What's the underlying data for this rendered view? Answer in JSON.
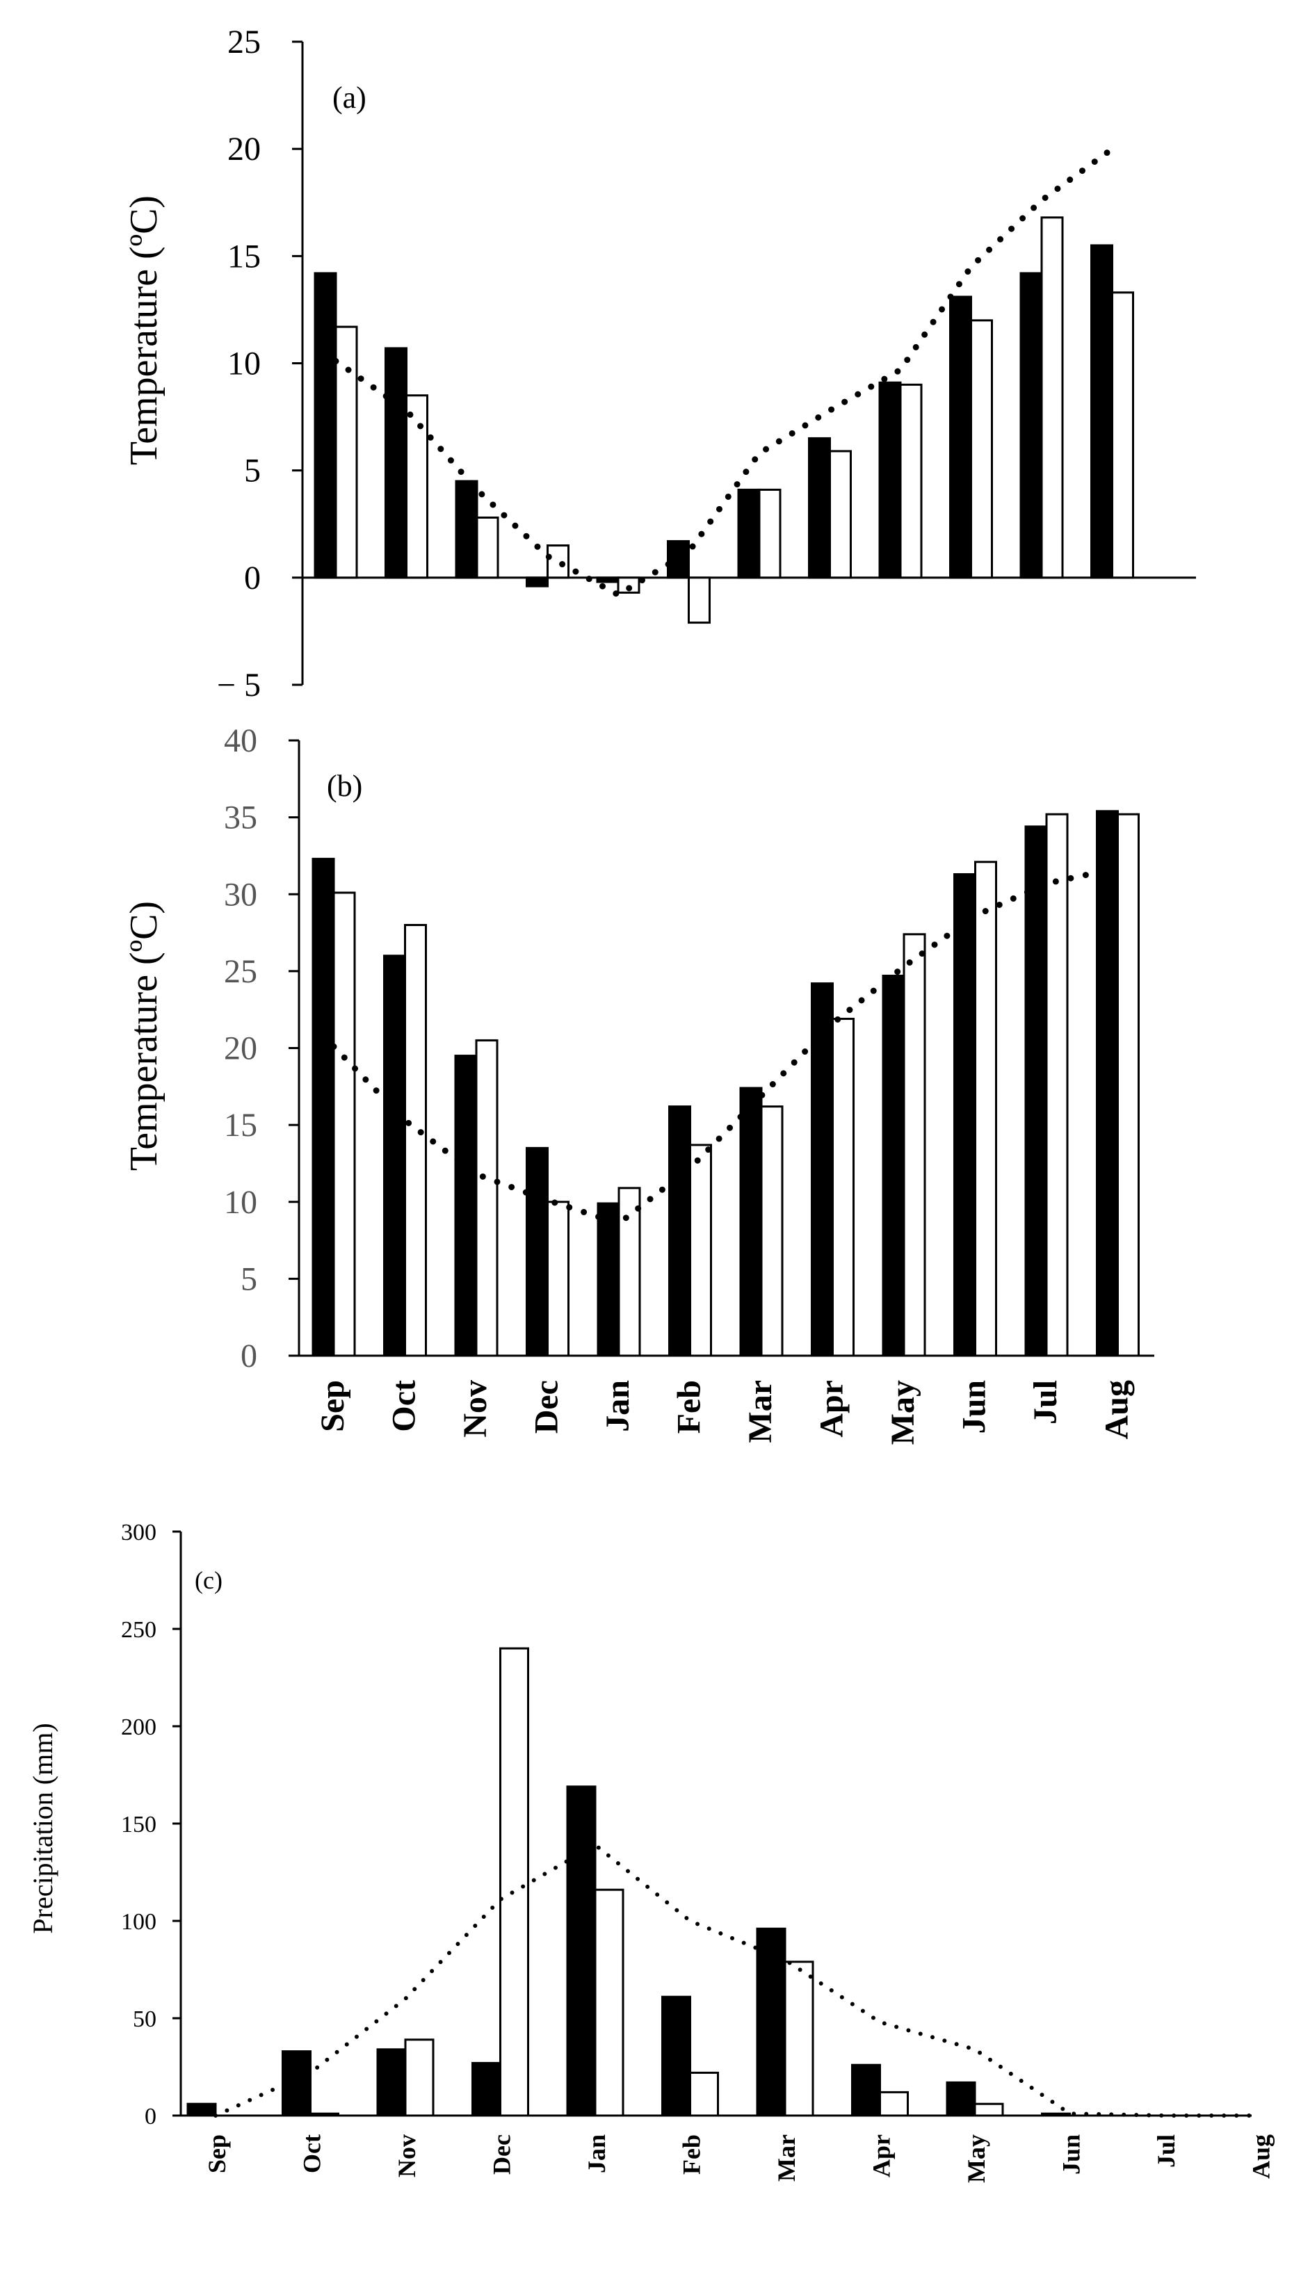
{
  "chart_data": [
    {
      "type": "bar",
      "panel_label": "(a)",
      "categories": [
        "Sep",
        "Oct",
        "Nov",
        "Dec",
        "Jan",
        "Feb",
        "Mar",
        "Apr",
        "May",
        "Jun",
        "Jul",
        "Aug"
      ],
      "series": [
        {
          "name": "filled",
          "color": "#000000",
          "values": [
            14.2,
            10.7,
            4.5,
            -0.4,
            -0.2,
            1.7,
            4.1,
            6.5,
            9.1,
            13.1,
            14.2,
            15.5
          ]
        },
        {
          "name": "open",
          "color": "#ffffff",
          "values": [
            11.7,
            8.5,
            2.8,
            1.5,
            -0.7,
            -2.1,
            4.1,
            5.9,
            9.0,
            12.0,
            16.8,
            13.3
          ]
        },
        {
          "name": "mean",
          "style": "dotted-line",
          "values": [
            10.1,
            7.8,
            4.1,
            1.0,
            -0.8,
            1.2,
            5.8,
            7.8,
            9.7,
            14.5,
            17.6,
            20.0
          ]
        }
      ],
      "ylabel": "Temperature (ºC)",
      "ylim": [
        -5,
        25
      ],
      "yticks": [
        "25",
        "20",
        "15",
        "10",
        "5",
        "0",
        "− 5"
      ]
    },
    {
      "type": "bar",
      "panel_label": "(b)",
      "categories": [
        "Sep",
        "Oct",
        "Nov",
        "Dec",
        "Jan",
        "Feb",
        "Mar",
        "Apr",
        "May",
        "Jun",
        "Jul",
        "Aug"
      ],
      "series": [
        {
          "name": "filled",
          "color": "#000000",
          "values": [
            32.3,
            26.0,
            19.5,
            13.5,
            9.9,
            16.2,
            17.4,
            24.2,
            24.7,
            31.3,
            34.4,
            35.4
          ]
        },
        {
          "name": "open",
          "color": "#ffffff",
          "values": [
            30.1,
            28.0,
            20.5,
            10.0,
            10.9,
            13.7,
            16.2,
            21.9,
            27.4,
            32.1,
            35.2,
            35.2
          ]
        },
        {
          "name": "mean",
          "style": "dotted-line",
          "values": [
            20.1,
            15.3,
            11.8,
            10.1,
            8.6,
            12.2,
            16.9,
            21.6,
            25.3,
            28.6,
            30.7,
            31.7
          ]
        }
      ],
      "ylabel": "Temperature (ºC)",
      "ylim": [
        0,
        40
      ],
      "yticks": [
        "40",
        "35",
        "30",
        "25",
        "20",
        "15",
        "10",
        "5",
        "0"
      ]
    },
    {
      "type": "bar",
      "panel_label": "(c)",
      "categories": [
        "Sep",
        "Oct",
        "Nov",
        "Dec",
        "Jan",
        "Feb",
        "Mar",
        "Apr",
        "May",
        "Jun",
        "Jul",
        "Aug"
      ],
      "series": [
        {
          "name": "filled",
          "color": "#000000",
          "values": [
            6,
            33,
            34,
            27,
            169,
            61,
            96,
            26,
            17,
            1,
            0,
            0
          ]
        },
        {
          "name": "open",
          "color": "#ffffff",
          "values": [
            0,
            1,
            39,
            240,
            116,
            22,
            79,
            12,
            6,
            0,
            0,
            0
          ]
        },
        {
          "name": "mean",
          "style": "dotted-line",
          "values": [
            0,
            22,
            60,
            111,
            139,
            100,
            80,
            48,
            34,
            1,
            0,
            0
          ]
        }
      ],
      "ylabel": "Precipitation (mm)",
      "ylim": [
        0,
        300
      ],
      "yticks": [
        "300",
        "250",
        "200",
        "150",
        "100",
        "50",
        "0"
      ]
    }
  ]
}
